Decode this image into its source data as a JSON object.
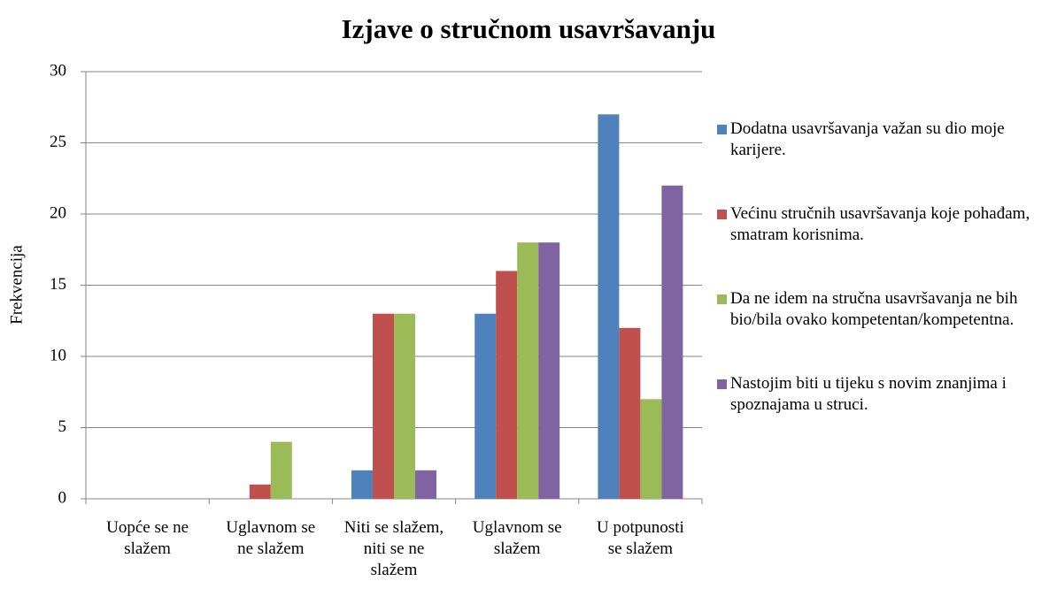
{
  "chart_data": {
    "type": "bar",
    "title": "Izjave o stručnom usavršavanju",
    "y_label": "Frekvencija",
    "categories": [
      "Uopće se ne slažem",
      "Uglavnom se ne slažem",
      "Niti se slažem, niti se ne slažem",
      "Uglavnom se slažem",
      "U potpunosti se slažem"
    ],
    "series": [
      {
        "name": "Dodatna usavršavanja važan su dio moje karijere.",
        "color": "#4f81bd",
        "values": [
          0,
          0,
          2,
          13,
          27
        ]
      },
      {
        "name": "Većinu stručnih usavršavanja koje pohađam, smatram korisnima.",
        "color": "#c0504d",
        "values": [
          0,
          1,
          13,
          16,
          12
        ]
      },
      {
        "name": "Da ne idem na stručna usavršavanja ne bih bio/bila ovako kompetentan/kompetentna.",
        "color": "#9bbb59",
        "values": [
          0,
          4,
          13,
          18,
          7
        ]
      },
      {
        "name": "Nastojim biti u tijeku s novim znanjima i spoznajama u struci.",
        "color": "#8064a2",
        "values": [
          0,
          0,
          2,
          18,
          22
        ]
      }
    ],
    "ylim": [
      0,
      30
    ],
    "yticks": [
      0,
      5,
      10,
      15,
      20,
      25,
      30
    ],
    "grid": true,
    "legend": "right"
  }
}
